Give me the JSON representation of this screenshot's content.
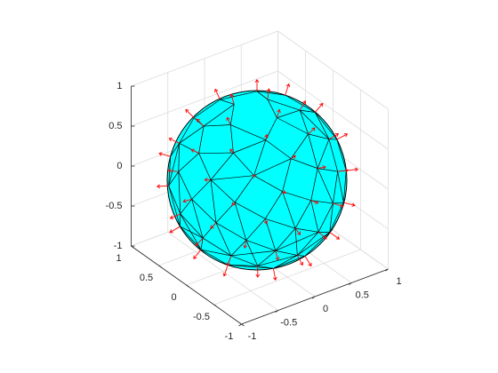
{
  "chart_data": {
    "type": "mesh3d",
    "xlim": [
      -1,
      1
    ],
    "xticks": [
      -1,
      -0.5,
      0,
      0.5,
      1
    ],
    "ylim": [
      -1,
      1
    ],
    "yticks": [
      -1,
      -0.5,
      0,
      0.5,
      1
    ],
    "zlim": [
      -1,
      1
    ],
    "zticks": [
      -1,
      -0.5,
      0,
      0.5,
      1
    ],
    "grid": true,
    "color": "#00ffff",
    "arrow_color": "#ff0000"
  }
}
